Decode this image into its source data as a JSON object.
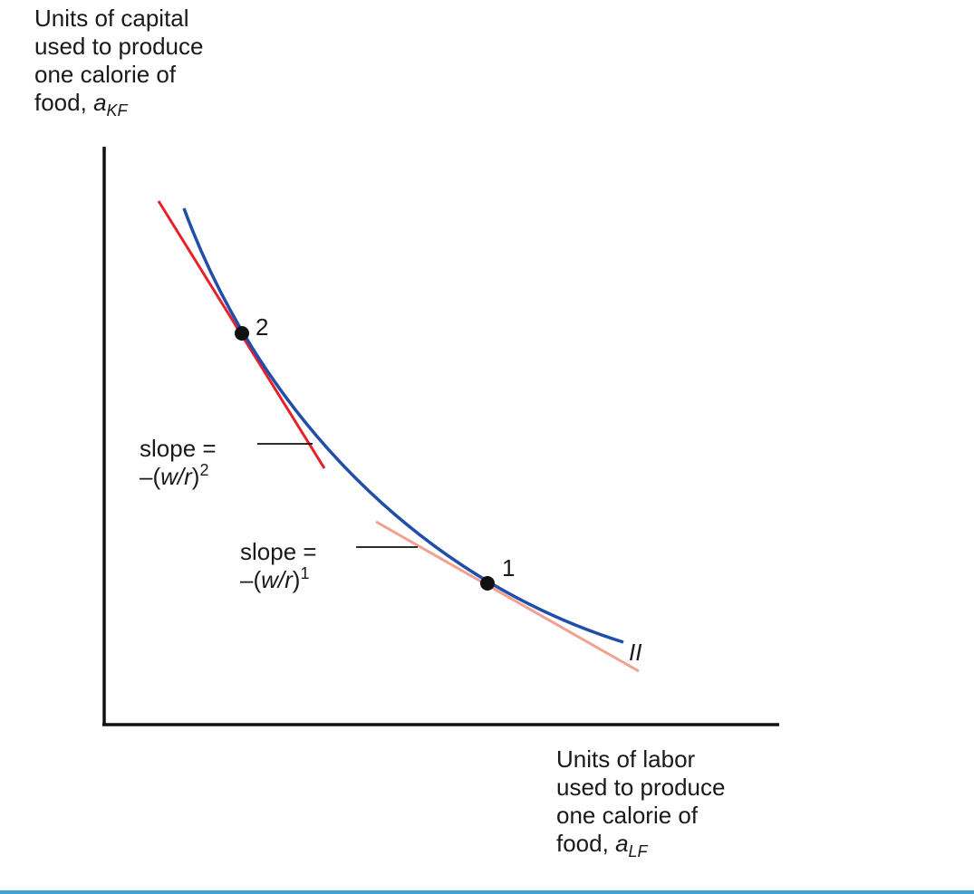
{
  "axes": {
    "y_title_lines": [
      "Units of capital",
      "used to produce",
      "one calorie of",
      "food, "
    ],
    "y_symbol": "a",
    "y_subscript": "KF",
    "x_title_lines": [
      "Units of labor",
      "used to produce",
      "one calorie of",
      "food, "
    ],
    "x_symbol": "a",
    "x_subscript": "LF"
  },
  "points": {
    "point_2": "2",
    "point_1": "1"
  },
  "curve": {
    "label": "II",
    "color": "#1f4fa8"
  },
  "tangents": {
    "slope_2": {
      "line1": "slope =",
      "prefix": "–(",
      "symbol": "w/r",
      "suffix": ")",
      "exponent": "2",
      "color": "#e8202a"
    },
    "slope_1": {
      "line1": "slope =",
      "prefix": "–(",
      "symbol": "w/r",
      "suffix": ")",
      "exponent": "1",
      "color": "#f2a090"
    }
  }
}
